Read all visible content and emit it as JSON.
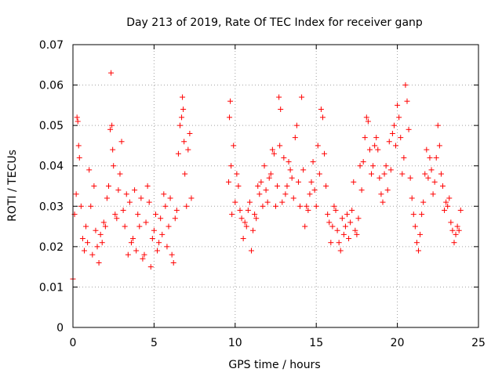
{
  "chart_data": {
    "type": "scatter",
    "title": "Day 213 of 2019, Rate Of TEC Index for receiver ganp",
    "xlabel": "GPS time / hours",
    "ylabel": "ROTI / TECUs",
    "xlim": [
      0,
      25
    ],
    "ylim": [
      0,
      0.07
    ],
    "xticks": [
      0,
      5,
      10,
      15,
      20,
      25
    ],
    "xtick_labels": [
      "0",
      "5",
      "10",
      "15",
      "20",
      "25"
    ],
    "yticks": [
      0,
      0.01,
      0.02,
      0.03,
      0.04,
      0.05,
      0.06,
      0.07
    ],
    "ytick_labels": [
      "0",
      "0.01",
      "0.02",
      "0.03",
      "0.04",
      "0.05",
      "0.06",
      "0.07"
    ],
    "grid": true,
    "marker": "+",
    "series_color": "#ff0000",
    "series": [
      {
        "name": "ROTI",
        "x": [
          0.0,
          0.1,
          0.2,
          0.25,
          0.3,
          0.35,
          0.4,
          0.5,
          0.6,
          0.7,
          0.8,
          0.9,
          1.0,
          1.1,
          1.2,
          1.3,
          1.4,
          1.5,
          1.6,
          1.7,
          1.8,
          1.9,
          2.0,
          2.1,
          2.2,
          2.3,
          2.35,
          2.4,
          2.45,
          2.5,
          2.6,
          2.7,
          2.8,
          2.9,
          3.0,
          3.1,
          3.2,
          3.3,
          3.4,
          3.5,
          3.6,
          3.7,
          3.8,
          3.9,
          4.0,
          4.1,
          4.2,
          4.3,
          4.4,
          4.5,
          4.6,
          4.7,
          4.8,
          4.9,
          5.0,
          5.1,
          5.2,
          5.3,
          5.4,
          5.5,
          5.6,
          5.7,
          5.8,
          5.9,
          6.0,
          6.1,
          6.2,
          6.3,
          6.4,
          6.5,
          6.6,
          6.7,
          6.75,
          6.8,
          6.85,
          6.9,
          7.0,
          7.1,
          7.2,
          7.3,
          9.6,
          9.65,
          9.7,
          9.75,
          9.8,
          9.9,
          10.0,
          10.1,
          10.2,
          10.3,
          10.4,
          10.5,
          10.6,
          10.7,
          10.8,
          10.9,
          11.0,
          11.1,
          11.2,
          11.3,
          11.4,
          11.5,
          11.6,
          11.7,
          11.8,
          11.9,
          12.0,
          12.1,
          12.2,
          12.3,
          12.4,
          12.5,
          12.6,
          12.7,
          12.75,
          12.8,
          12.9,
          13.0,
          13.1,
          13.2,
          13.3,
          13.4,
          13.5,
          13.6,
          13.7,
          13.8,
          13.9,
          14.0,
          14.1,
          14.2,
          14.3,
          14.4,
          14.5,
          14.6,
          14.7,
          14.8,
          14.9,
          15.0,
          15.1,
          15.2,
          15.3,
          15.4,
          15.5,
          15.6,
          15.7,
          15.8,
          15.9,
          16.0,
          16.1,
          16.2,
          16.3,
          16.4,
          16.5,
          16.6,
          16.7,
          16.8,
          16.9,
          17.0,
          17.1,
          17.2,
          17.3,
          17.4,
          17.5,
          17.6,
          17.7,
          17.8,
          17.9,
          18.0,
          18.1,
          18.2,
          18.3,
          18.4,
          18.5,
          18.6,
          18.7,
          18.8,
          18.9,
          19.0,
          19.1,
          19.2,
          19.3,
          19.4,
          19.5,
          19.6,
          19.7,
          19.8,
          19.9,
          20.0,
          20.1,
          20.2,
          20.3,
          20.4,
          20.5,
          20.6,
          20.7,
          20.8,
          20.9,
          21.0,
          21.1,
          21.2,
          21.3,
          21.4,
          21.5,
          21.6,
          21.7,
          21.8,
          21.9,
          22.0,
          22.1,
          22.2,
          22.3,
          22.4,
          22.5,
          22.6,
          22.7,
          22.8,
          22.9,
          23.0,
          23.1,
          23.2,
          23.3,
          23.4,
          23.5,
          23.6,
          23.7,
          23.8,
          23.9
        ],
        "y": [
          0.012,
          0.028,
          0.033,
          0.052,
          0.051,
          0.045,
          0.042,
          0.03,
          0.022,
          0.019,
          0.025,
          0.021,
          0.039,
          0.03,
          0.018,
          0.035,
          0.024,
          0.02,
          0.016,
          0.023,
          0.021,
          0.026,
          0.025,
          0.032,
          0.035,
          0.049,
          0.063,
          0.05,
          0.044,
          0.04,
          0.028,
          0.027,
          0.034,
          0.038,
          0.046,
          0.029,
          0.025,
          0.033,
          0.018,
          0.031,
          0.021,
          0.022,
          0.034,
          0.019,
          0.028,
          0.025,
          0.032,
          0.017,
          0.018,
          0.026,
          0.035,
          0.031,
          0.015,
          0.022,
          0.024,
          0.028,
          0.019,
          0.021,
          0.027,
          0.023,
          0.033,
          0.03,
          0.02,
          0.025,
          0.032,
          0.018,
          0.016,
          0.027,
          0.029,
          0.043,
          0.05,
          0.052,
          0.057,
          0.054,
          0.046,
          0.038,
          0.03,
          0.044,
          0.048,
          0.032,
          0.036,
          0.052,
          0.056,
          0.04,
          0.028,
          0.045,
          0.031,
          0.038,
          0.035,
          0.029,
          0.027,
          0.022,
          0.026,
          0.025,
          0.029,
          0.031,
          0.019,
          0.024,
          0.028,
          0.027,
          0.035,
          0.033,
          0.036,
          0.03,
          0.04,
          0.034,
          0.031,
          0.037,
          0.038,
          0.044,
          0.043,
          0.03,
          0.035,
          0.057,
          0.045,
          0.054,
          0.031,
          0.042,
          0.033,
          0.035,
          0.041,
          0.039,
          0.037,
          0.032,
          0.047,
          0.05,
          0.036,
          0.03,
          0.057,
          0.039,
          0.025,
          0.03,
          0.029,
          0.033,
          0.036,
          0.041,
          0.034,
          0.03,
          0.045,
          0.038,
          0.054,
          0.052,
          0.043,
          0.035,
          0.028,
          0.026,
          0.021,
          0.025,
          0.03,
          0.029,
          0.024,
          0.021,
          0.019,
          0.027,
          0.023,
          0.025,
          0.028,
          0.022,
          0.026,
          0.029,
          0.036,
          0.024,
          0.023,
          0.027,
          0.04,
          0.034,
          0.041,
          0.047,
          0.052,
          0.051,
          0.044,
          0.038,
          0.04,
          0.045,
          0.047,
          0.044,
          0.037,
          0.033,
          0.031,
          0.038,
          0.04,
          0.034,
          0.046,
          0.039,
          0.048,
          0.05,
          0.045,
          0.055,
          0.052,
          0.047,
          0.038,
          0.042,
          0.06,
          0.056,
          0.049,
          0.037,
          0.032,
          0.028,
          0.025,
          0.021,
          0.019,
          0.023,
          0.028,
          0.031,
          0.038,
          0.044,
          0.037,
          0.042,
          0.039,
          0.033,
          0.036,
          0.042,
          0.05,
          0.045,
          0.038,
          0.035,
          0.029,
          0.031,
          0.03,
          0.032,
          0.026,
          0.024,
          0.021,
          0.023,
          0.025,
          0.024,
          0.029
        ]
      }
    ]
  }
}
